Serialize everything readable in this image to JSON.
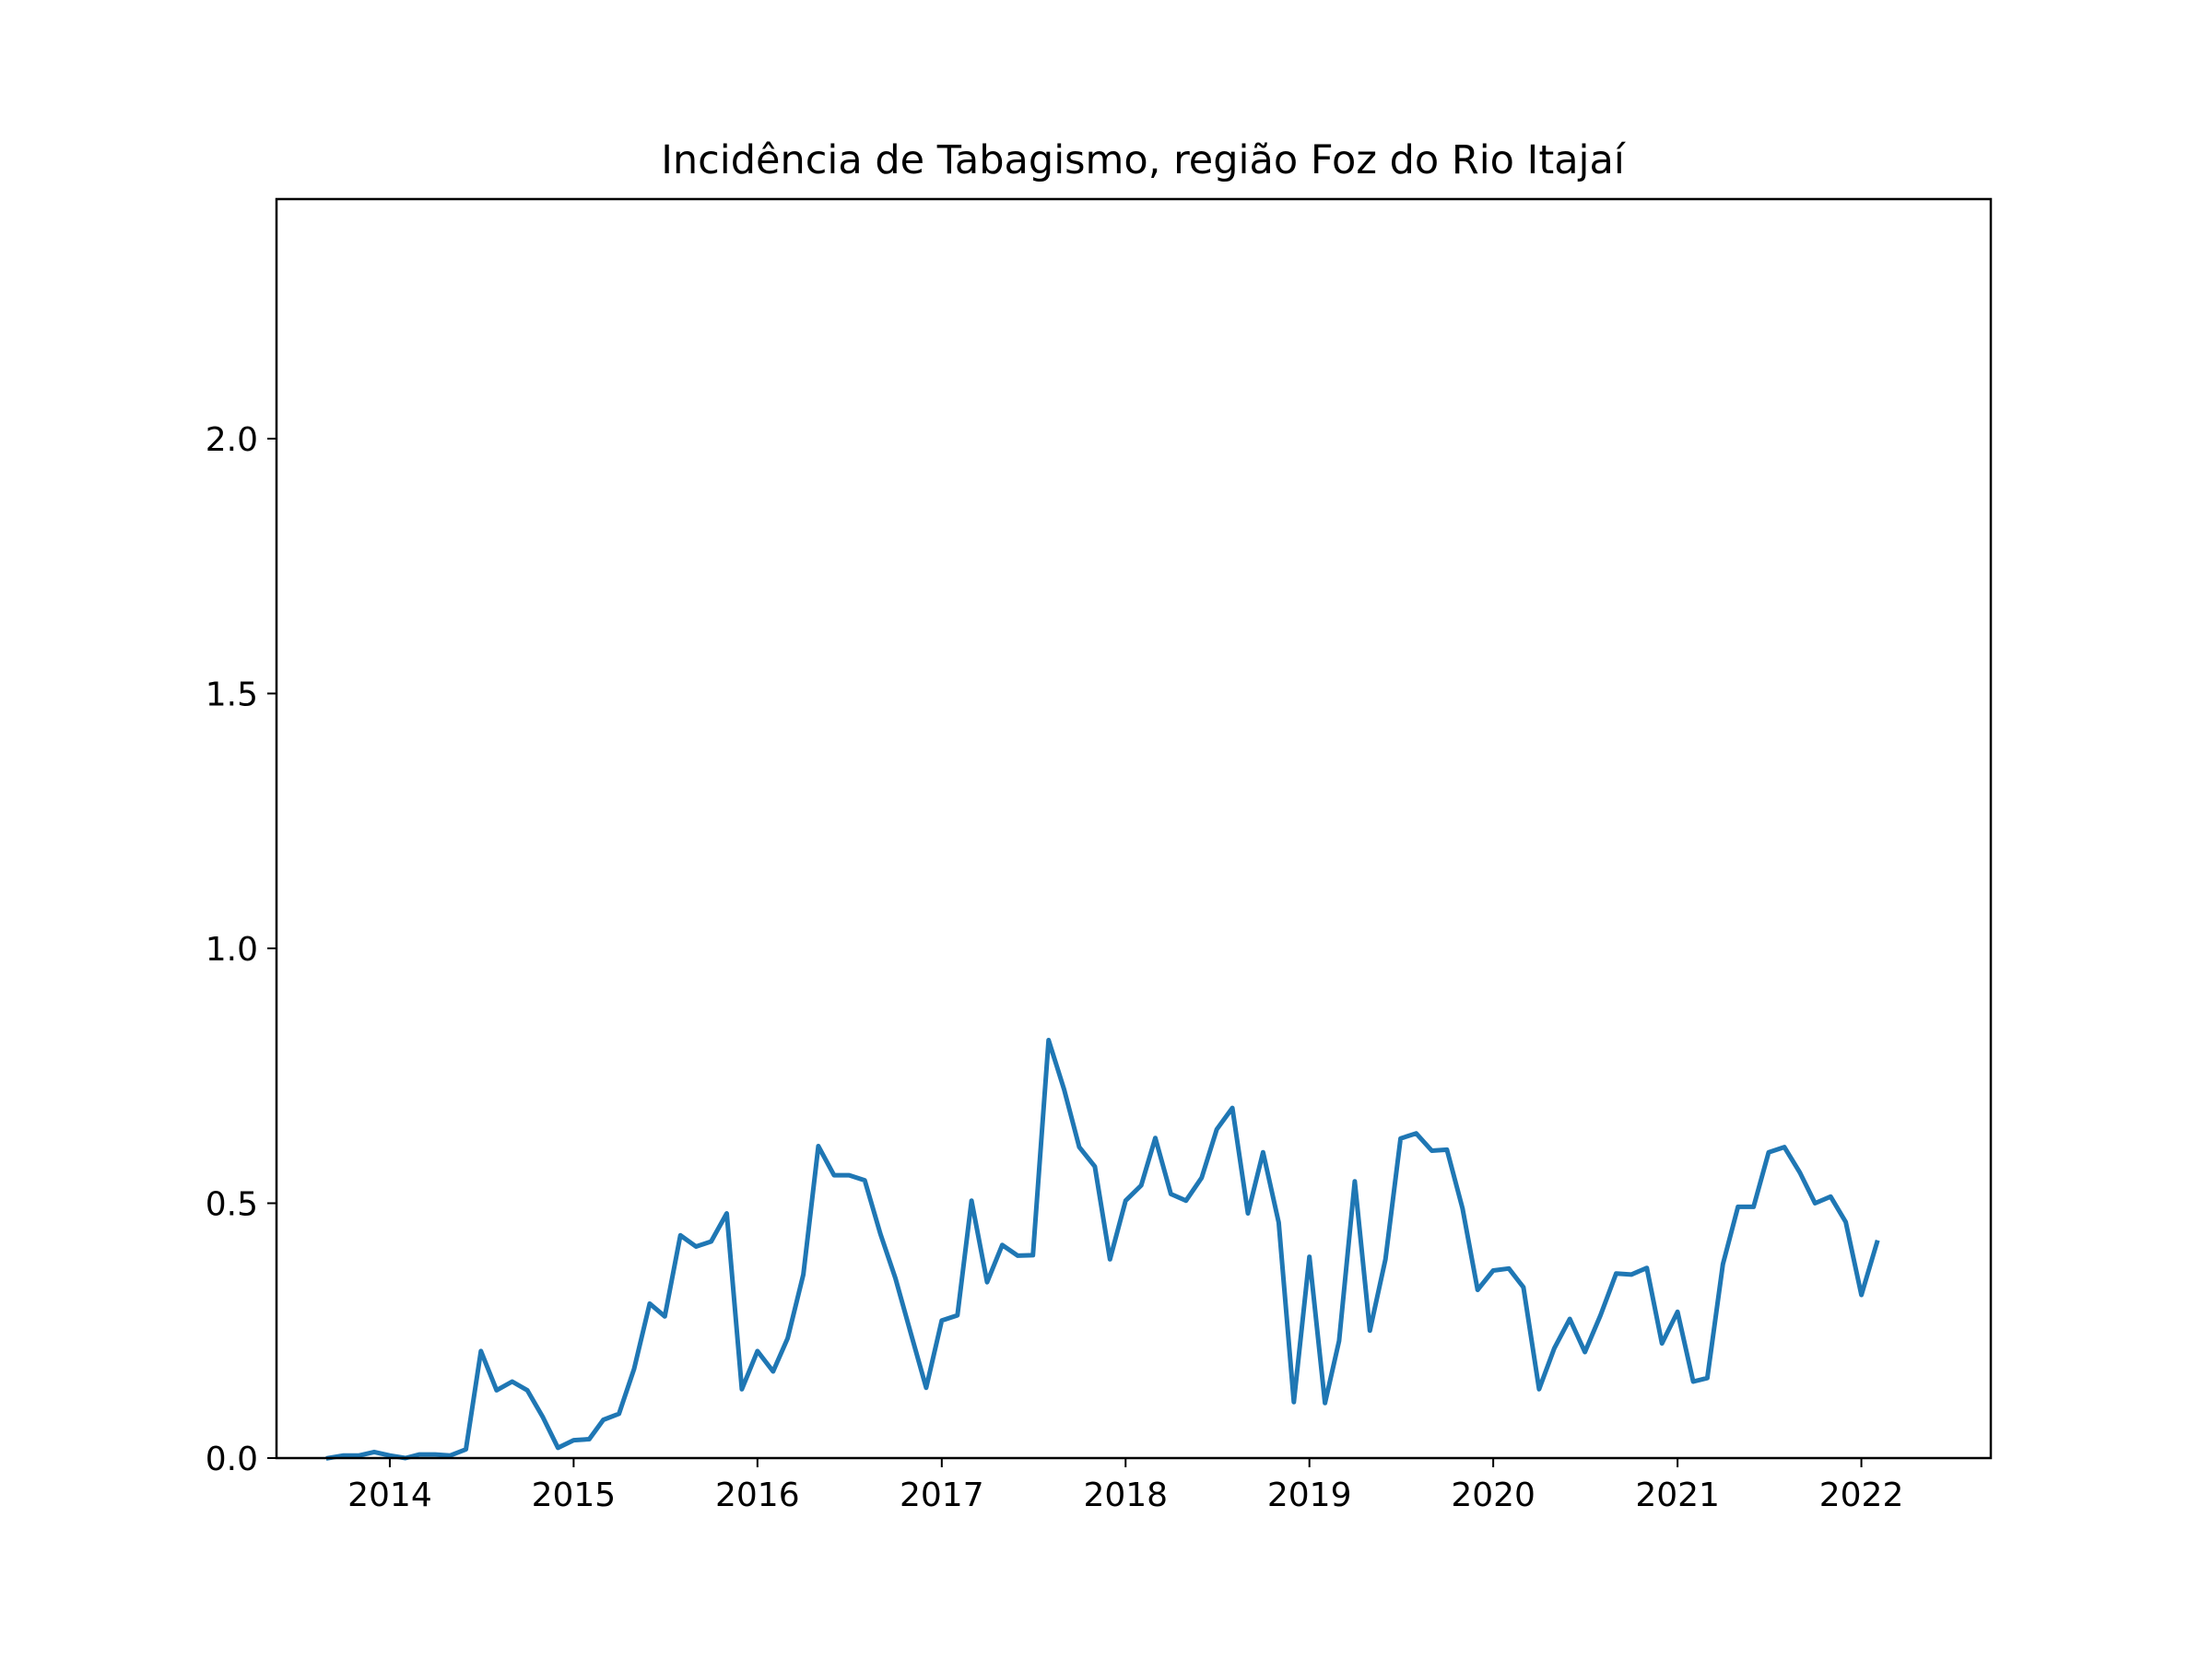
{
  "chart_data": {
    "type": "line",
    "title": "Incidência de Tabagismo, região Foz do Rio Itajaí",
    "xlabel": "",
    "ylabel": "",
    "xlim": [
      "2013-05-21",
      "2022-09-15"
    ],
    "ylim": [
      0,
      2.47
    ],
    "grid": false,
    "legend": "none",
    "x_ticks": [
      "2014-01-01",
      "2015-01-01",
      "2016-01-01",
      "2017-01-01",
      "2018-01-01",
      "2019-01-01",
      "2020-01-01",
      "2021-01-01",
      "2022-01-01"
    ],
    "x_tick_labels": [
      "2014",
      "2015",
      "2016",
      "2017",
      "2018",
      "2019",
      "2020",
      "2021",
      "2022"
    ],
    "y_ticks": [
      0,
      0.5,
      1.0,
      1.5,
      2.0
    ],
    "y_tick_labels": [
      "0.0",
      "0.5",
      "1.0",
      "1.5",
      "2.0"
    ],
    "colors": {
      "line": "#1f77b4",
      "axes": "#000000",
      "background": "#ffffff"
    },
    "series": [
      {
        "x": [
          "2013-09",
          "2013-10",
          "2013-11",
          "2013-12",
          "2014-01",
          "2014-02",
          "2014-03",
          "2014-04",
          "2014-05",
          "2014-06",
          "2014-07",
          "2014-08",
          "2014-09",
          "2014-10",
          "2014-11",
          "2014-12",
          "2015-01",
          "2015-02",
          "2015-03",
          "2015-04",
          "2015-05",
          "2015-06",
          "2015-07",
          "2015-08",
          "2015-09",
          "2015-10",
          "2015-11",
          "2015-12",
          "2016-01",
          "2016-02",
          "2016-03",
          "2016-04",
          "2016-05",
          "2016-06",
          "2016-07",
          "2016-08",
          "2016-09",
          "2016-10",
          "2016-11",
          "2016-12",
          "2017-01",
          "2017-02",
          "2017-03",
          "2017-04",
          "2017-05",
          "2017-06",
          "2017-07",
          "2017-08",
          "2017-09",
          "2017-10",
          "2017-11",
          "2017-12",
          "2018-01",
          "2018-02",
          "2018-03",
          "2018-04",
          "2018-05",
          "2018-06",
          "2018-07",
          "2018-08",
          "2018-09",
          "2018-10",
          "2018-11",
          "2018-12",
          "2019-01",
          "2019-02",
          "2019-03",
          "2019-04",
          "2019-05",
          "2019-06",
          "2019-07",
          "2019-08",
          "2019-09",
          "2019-10",
          "2019-11",
          "2019-12",
          "2020-01",
          "2020-02",
          "2020-03",
          "2020-04",
          "2020-05",
          "2020-06",
          "2020-07",
          "2020-08",
          "2020-09",
          "2020-10",
          "2020-11",
          "2020-12",
          "2021-01",
          "2021-02",
          "2021-03",
          "2021-04",
          "2021-05",
          "2021-06",
          "2021-07",
          "2021-08",
          "2021-09",
          "2021-10",
          "2021-11",
          "2021-12",
          "2022-01",
          "2022-02"
        ],
        "values": [
          0.0,
          0.005,
          0.005,
          0.012,
          0.005,
          0.0,
          0.007,
          0.007,
          0.005,
          0.017,
          0.21,
          0.133,
          0.15,
          0.133,
          0.08,
          0.02,
          0.035,
          0.037,
          0.075,
          0.087,
          0.175,
          0.303,
          0.278,
          0.437,
          0.415,
          0.425,
          0.48,
          0.135,
          0.21,
          0.17,
          0.235,
          0.36,
          0.612,
          0.555,
          0.555,
          0.545,
          0.44,
          0.353,
          0.243,
          0.138,
          0.27,
          0.28,
          0.505,
          0.345,
          0.418,
          0.397,
          0.398,
          0.82,
          0.723,
          0.61,
          0.572,
          0.39,
          0.505,
          0.535,
          0.628,
          0.518,
          0.505,
          0.55,
          0.645,
          0.687,
          0.48,
          0.6,
          0.462,
          0.11,
          0.395,
          0.108,
          0.23,
          0.543,
          0.25,
          0.39,
          0.627,
          0.637,
          0.603,
          0.605,
          0.49,
          0.33,
          0.368,
          0.372,
          0.335,
          0.135,
          0.215,
          0.273,
          0.208,
          0.28,
          0.362,
          0.36,
          0.373,
          0.225,
          0.287,
          0.15,
          0.157,
          0.38,
          0.493,
          0.493,
          0.6,
          0.61,
          0.56,
          0.5,
          0.513,
          0.463,
          0.32,
          0.423
        ]
      }
    ]
  }
}
